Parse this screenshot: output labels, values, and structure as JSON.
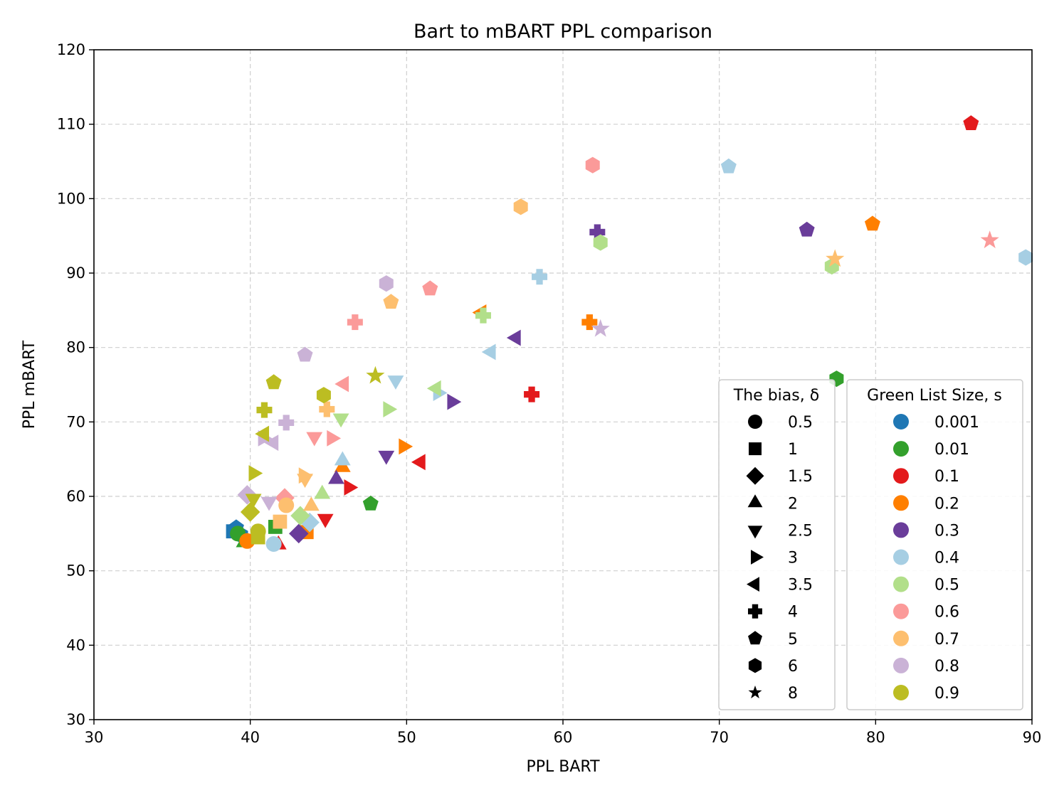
{
  "chart_data": {
    "type": "scatter",
    "title": "Bart to mBART PPL comparison",
    "xlabel": "PPL BART",
    "ylabel": "PPL mBART",
    "xlim": [
      30,
      90
    ],
    "ylim": [
      30,
      120
    ],
    "xticks": [
      "30",
      "40",
      "50",
      "60",
      "70",
      "80",
      "90"
    ],
    "yticks": [
      "30",
      "40",
      "50",
      "60",
      "70",
      "80",
      "90",
      "100",
      "110",
      "120"
    ],
    "grid": true,
    "marker_legend": {
      "title": "The bias, δ",
      "entries": [
        {
          "label": "0.5",
          "marker": "circle"
        },
        {
          "label": "1",
          "marker": "square"
        },
        {
          "label": "1.5",
          "marker": "diamond"
        },
        {
          "label": "2",
          "marker": "triangle-up"
        },
        {
          "label": "2.5",
          "marker": "triangle-down"
        },
        {
          "label": "3",
          "marker": "triangle-right"
        },
        {
          "label": "3.5",
          "marker": "triangle-left"
        },
        {
          "label": "4",
          "marker": "plus"
        },
        {
          "label": "5",
          "marker": "pentagon"
        },
        {
          "label": "6",
          "marker": "hexagon"
        },
        {
          "label": "8",
          "marker": "star"
        }
      ]
    },
    "color_legend": {
      "title": "Green List Size, s",
      "entries": [
        {
          "label": "0.001",
          "color": "#1f77b4"
        },
        {
          "label": "0.01",
          "color": "#33a02c"
        },
        {
          "label": "0.1",
          "color": "#e31a1c"
        },
        {
          "label": "0.2",
          "color": "#ff7f00"
        },
        {
          "label": "0.3",
          "color": "#6a3d9a"
        },
        {
          "label": "0.4",
          "color": "#a6cee3"
        },
        {
          "label": "0.5",
          "color": "#b2df8a"
        },
        {
          "label": "0.6",
          "color": "#fb9a99"
        },
        {
          "label": "0.7",
          "color": "#fdbf6f"
        },
        {
          "label": "0.8",
          "color": "#cab2d6"
        },
        {
          "label": "0.9",
          "color": "#bcbd22"
        }
      ]
    },
    "points": [
      {
        "x": 38.9,
        "y": 55.3,
        "marker": "square",
        "color": "#1f77b4"
      },
      {
        "x": 39.1,
        "y": 55.8,
        "marker": "pentagon",
        "color": "#1f77b4"
      },
      {
        "x": 39.4,
        "y": 54.8,
        "marker": "hexagon",
        "color": "#1f77b4"
      },
      {
        "x": 39.2,
        "y": 55.0,
        "marker": "circle",
        "color": "#33a02c"
      },
      {
        "x": 39.6,
        "y": 53.8,
        "marker": "triangle-up",
        "color": "#33a02c"
      },
      {
        "x": 41.6,
        "y": 55.9,
        "marker": "square",
        "color": "#33a02c"
      },
      {
        "x": 47.7,
        "y": 59.0,
        "marker": "pentagon",
        "color": "#33a02c"
      },
      {
        "x": 77.5,
        "y": 75.8,
        "marker": "hexagon",
        "color": "#33a02c"
      },
      {
        "x": 41.8,
        "y": 53.5,
        "marker": "triangle-up",
        "color": "#e31a1c"
      },
      {
        "x": 44.8,
        "y": 57.0,
        "marker": "triangle-down",
        "color": "#e31a1c"
      },
      {
        "x": 46.3,
        "y": 61.2,
        "marker": "triangle-right",
        "color": "#e31a1c"
      },
      {
        "x": 50.9,
        "y": 64.6,
        "marker": "triangle-left",
        "color": "#e31a1c"
      },
      {
        "x": 58.0,
        "y": 73.7,
        "marker": "plus",
        "color": "#e31a1c"
      },
      {
        "x": 86.1,
        "y": 110.1,
        "marker": "pentagon",
        "color": "#e31a1c"
      },
      {
        "x": 39.8,
        "y": 54.0,
        "marker": "circle",
        "color": "#ff7f00"
      },
      {
        "x": 43.6,
        "y": 55.2,
        "marker": "square",
        "color": "#ff7f00"
      },
      {
        "x": 45.9,
        "y": 63.9,
        "marker": "triangle-up",
        "color": "#ff7f00"
      },
      {
        "x": 49.8,
        "y": 66.7,
        "marker": "triangle-right",
        "color": "#ff7f00"
      },
      {
        "x": 54.8,
        "y": 84.7,
        "marker": "triangle-left",
        "color": "#ff7f00"
      },
      {
        "x": 61.7,
        "y": 83.4,
        "marker": "plus",
        "color": "#ff7f00"
      },
      {
        "x": 79.8,
        "y": 96.6,
        "marker": "pentagon",
        "color": "#ff7f00"
      },
      {
        "x": 43.1,
        "y": 55.0,
        "marker": "diamond",
        "color": "#6a3d9a"
      },
      {
        "x": 45.5,
        "y": 62.3,
        "marker": "triangle-up",
        "color": "#6a3d9a"
      },
      {
        "x": 48.7,
        "y": 65.5,
        "marker": "triangle-down",
        "color": "#6a3d9a"
      },
      {
        "x": 52.9,
        "y": 72.7,
        "marker": "triangle-right",
        "color": "#6a3d9a"
      },
      {
        "x": 57.0,
        "y": 81.3,
        "marker": "triangle-left",
        "color": "#6a3d9a"
      },
      {
        "x": 62.2,
        "y": 95.5,
        "marker": "plus",
        "color": "#6a3d9a"
      },
      {
        "x": 75.6,
        "y": 95.8,
        "marker": "pentagon",
        "color": "#6a3d9a"
      },
      {
        "x": 41.5,
        "y": 53.6,
        "marker": "circle",
        "color": "#a6cee3"
      },
      {
        "x": 43.8,
        "y": 56.5,
        "marker": "diamond",
        "color": "#a6cee3"
      },
      {
        "x": 45.9,
        "y": 64.8,
        "marker": "triangle-up",
        "color": "#a6cee3"
      },
      {
        "x": 49.3,
        "y": 75.6,
        "marker": "triangle-down",
        "color": "#a6cee3"
      },
      {
        "x": 52.0,
        "y": 73.9,
        "marker": "triangle-right",
        "color": "#a6cee3"
      },
      {
        "x": 55.4,
        "y": 79.4,
        "marker": "triangle-left",
        "color": "#a6cee3"
      },
      {
        "x": 58.5,
        "y": 89.5,
        "marker": "plus",
        "color": "#a6cee3"
      },
      {
        "x": 70.6,
        "y": 104.3,
        "marker": "pentagon",
        "color": "#a6cee3"
      },
      {
        "x": 89.6,
        "y": 92.1,
        "marker": "hexagon",
        "color": "#a6cee3"
      },
      {
        "x": 43.2,
        "y": 57.4,
        "marker": "diamond",
        "color": "#b2df8a"
      },
      {
        "x": 44.6,
        "y": 60.3,
        "marker": "triangle-up",
        "color": "#b2df8a"
      },
      {
        "x": 45.8,
        "y": 70.5,
        "marker": "triangle-down",
        "color": "#b2df8a"
      },
      {
        "x": 48.8,
        "y": 71.7,
        "marker": "triangle-right",
        "color": "#b2df8a"
      },
      {
        "x": 51.9,
        "y": 74.5,
        "marker": "triangle-left",
        "color": "#b2df8a"
      },
      {
        "x": 54.9,
        "y": 84.3,
        "marker": "plus",
        "color": "#b2df8a"
      },
      {
        "x": 62.4,
        "y": 94.1,
        "marker": "hexagon",
        "color": "#b2df8a"
      },
      {
        "x": 77.2,
        "y": 90.9,
        "marker": "hexagon",
        "color": "#b2df8a"
      },
      {
        "x": 42.2,
        "y": 59.8,
        "marker": "diamond",
        "color": "#fb9a99"
      },
      {
        "x": 44.1,
        "y": 68.0,
        "marker": "triangle-down",
        "color": "#fb9a99"
      },
      {
        "x": 45.2,
        "y": 67.8,
        "marker": "triangle-right",
        "color": "#fb9a99"
      },
      {
        "x": 46.0,
        "y": 75.1,
        "marker": "triangle-left",
        "color": "#fb9a99"
      },
      {
        "x": 46.7,
        "y": 83.4,
        "marker": "plus",
        "color": "#fb9a99"
      },
      {
        "x": 51.5,
        "y": 87.9,
        "marker": "pentagon",
        "color": "#fb9a99"
      },
      {
        "x": 61.9,
        "y": 104.5,
        "marker": "hexagon",
        "color": "#fb9a99"
      },
      {
        "x": 87.3,
        "y": 94.4,
        "marker": "star",
        "color": "#fb9a99"
      },
      {
        "x": 41.9,
        "y": 56.6,
        "marker": "square",
        "color": "#fdbf6f"
      },
      {
        "x": 42.3,
        "y": 58.8,
        "marker": "circle",
        "color": "#fdbf6f"
      },
      {
        "x": 43.9,
        "y": 58.7,
        "marker": "triangle-up",
        "color": "#fdbf6f"
      },
      {
        "x": 43.5,
        "y": 62.4,
        "marker": "triangle-down",
        "color": "#fdbf6f"
      },
      {
        "x": 43.4,
        "y": 62.8,
        "marker": "triangle-right",
        "color": "#fdbf6f"
      },
      {
        "x": 44.9,
        "y": 71.7,
        "marker": "plus",
        "color": "#fdbf6f"
      },
      {
        "x": 49.0,
        "y": 86.1,
        "marker": "pentagon",
        "color": "#fdbf6f"
      },
      {
        "x": 57.3,
        "y": 98.9,
        "marker": "hexagon",
        "color": "#fdbf6f"
      },
      {
        "x": 77.4,
        "y": 91.9,
        "marker": "star",
        "color": "#fdbf6f"
      },
      {
        "x": 39.8,
        "y": 60.2,
        "marker": "diamond",
        "color": "#cab2d6"
      },
      {
        "x": 41.2,
        "y": 59.3,
        "marker": "triangle-down",
        "color": "#cab2d6"
      },
      {
        "x": 40.8,
        "y": 67.8,
        "marker": "triangle-right",
        "color": "#cab2d6"
      },
      {
        "x": 41.5,
        "y": 67.2,
        "marker": "triangle-left",
        "color": "#cab2d6"
      },
      {
        "x": 42.3,
        "y": 69.9,
        "marker": "plus",
        "color": "#cab2d6"
      },
      {
        "x": 43.5,
        "y": 79.0,
        "marker": "pentagon",
        "color": "#cab2d6"
      },
      {
        "x": 48.7,
        "y": 88.6,
        "marker": "hexagon",
        "color": "#cab2d6"
      },
      {
        "x": 62.4,
        "y": 82.5,
        "marker": "star",
        "color": "#cab2d6"
      },
      {
        "x": 40.5,
        "y": 54.5,
        "marker": "square",
        "color": "#bcbd22"
      },
      {
        "x": 40.5,
        "y": 55.3,
        "marker": "circle",
        "color": "#bcbd22"
      },
      {
        "x": 40.0,
        "y": 57.9,
        "marker": "diamond",
        "color": "#bcbd22"
      },
      {
        "x": 40.2,
        "y": 59.7,
        "marker": "triangle-down",
        "color": "#bcbd22"
      },
      {
        "x": 40.2,
        "y": 63.1,
        "marker": "triangle-right",
        "color": "#bcbd22"
      },
      {
        "x": 40.9,
        "y": 68.4,
        "marker": "triangle-left",
        "color": "#bcbd22"
      },
      {
        "x": 40.9,
        "y": 71.6,
        "marker": "plus",
        "color": "#bcbd22"
      },
      {
        "x": 41.5,
        "y": 75.3,
        "marker": "pentagon",
        "color": "#bcbd22"
      },
      {
        "x": 44.7,
        "y": 73.6,
        "marker": "hexagon",
        "color": "#bcbd22"
      },
      {
        "x": 48.0,
        "y": 76.2,
        "marker": "star",
        "color": "#bcbd22"
      }
    ]
  }
}
